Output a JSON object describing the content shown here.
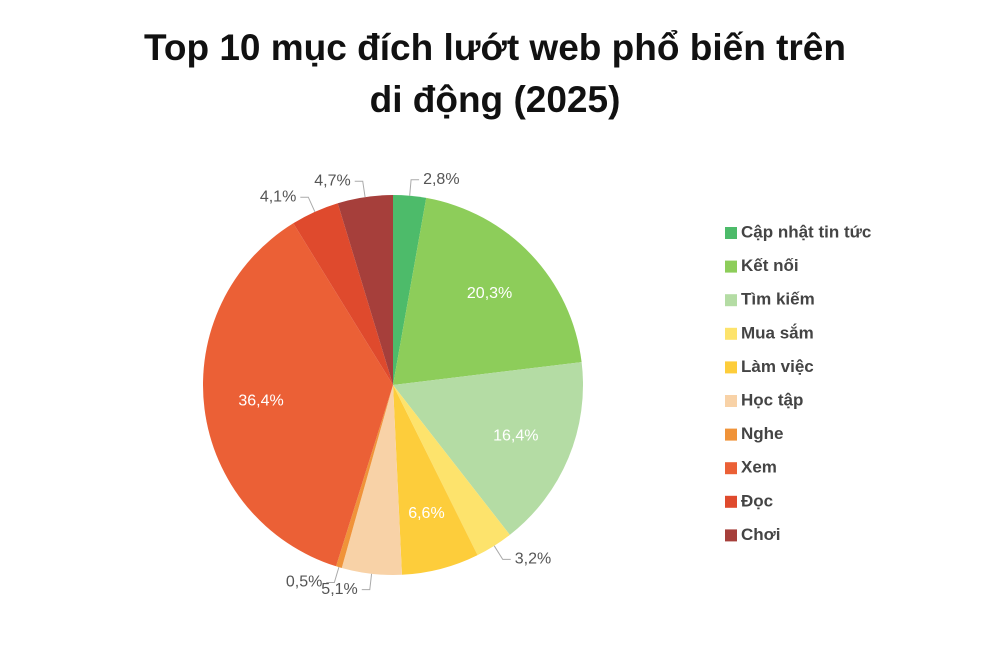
{
  "chart_data": {
    "type": "pie",
    "title": "Top 10 mục đích lướt web phổ biến trên di động (2025)",
    "categories": [
      "Cập nhật tin tức",
      "Kết nối",
      "Tìm kiếm",
      "Mua sắm",
      "Làm việc",
      "Học tập",
      "Nghe",
      "Xem",
      "Đọc",
      "Chơi"
    ],
    "values": [
      2.8,
      20.3,
      16.4,
      3.2,
      6.6,
      5.1,
      0.5,
      36.4,
      4.1,
      4.7
    ],
    "value_labels": [
      "2,8%",
      "20,3%",
      "16,4%",
      "3,2%",
      "6,6%",
      "5,1%",
      "0,5%",
      "36,4%",
      "4,1%",
      "4,7%"
    ],
    "colors": [
      "#4dbb6a",
      "#8dcd5a",
      "#b4dca4",
      "#fde36c",
      "#fdcd3b",
      "#f8d2a7",
      "#f09339",
      "#eb6036",
      "#df4a2d",
      "#a63f3b"
    ],
    "legend": "right"
  }
}
